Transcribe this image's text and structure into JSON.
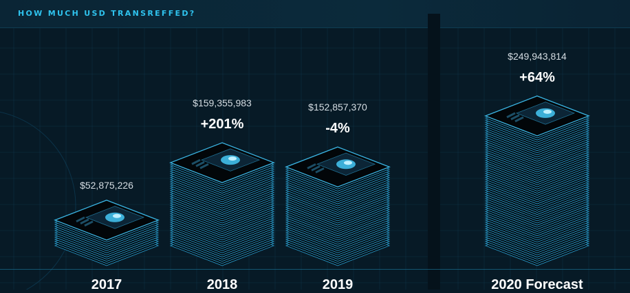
{
  "chart_data": {
    "type": "bar",
    "title": "HOW MUCH USD TRANSREFFED?",
    "categories": [
      "2017",
      "2018",
      "2019",
      "2020 Forecast"
    ],
    "values": [
      52875226,
      159355983,
      152857370,
      249943814
    ],
    "value_labels": [
      "$52,875,226",
      "$159,355,983",
      "$152,857,370",
      "$249,943,814"
    ],
    "change_labels": [
      "",
      "+201%",
      "-4%",
      "+64%"
    ],
    "grid": true,
    "legend": "none"
  },
  "colors": {
    "background": "#071a26",
    "accent": "#2fc3ee",
    "plate_line": "#2a9fd0",
    "plate_dark": "#03090e",
    "screen": "#0c2536",
    "glow": "#45c8f5"
  }
}
